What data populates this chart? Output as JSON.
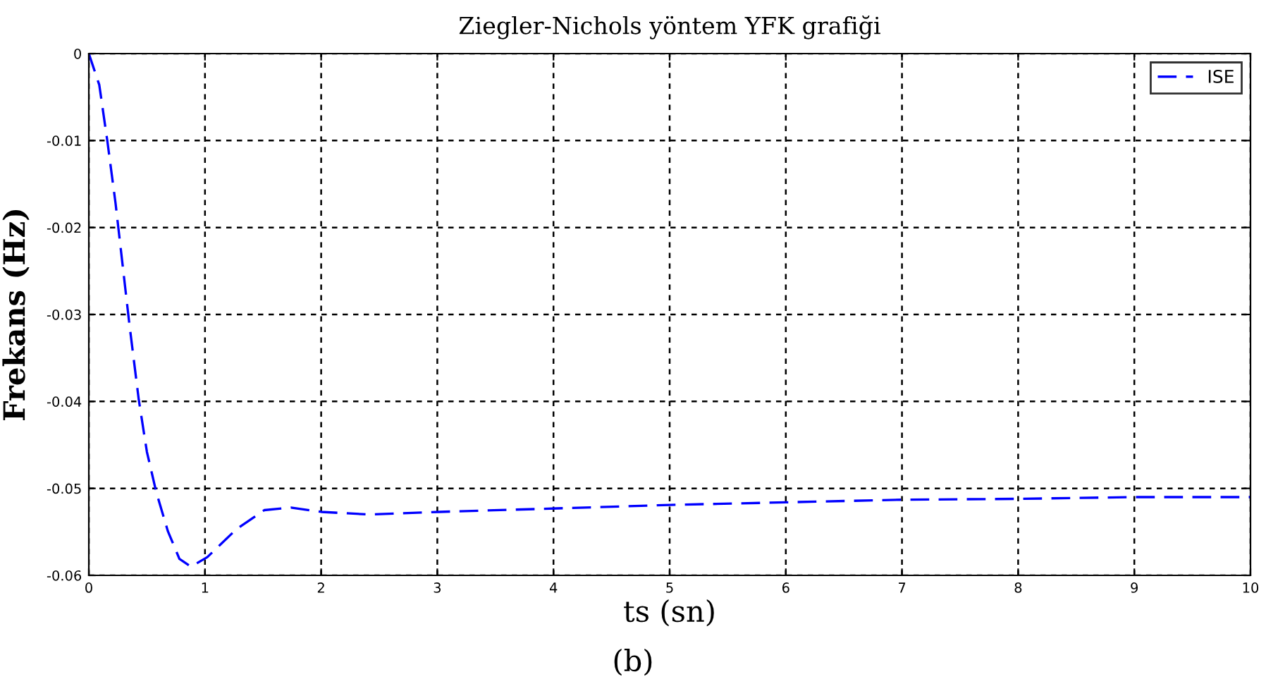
{
  "chart_data": {
    "type": "line",
    "title": "Ziegler-Nichols yöntem YFK grafiği",
    "xlabel": "ts (sn)",
    "ylabel": "Frekans (Hz)",
    "annotations": [
      "(b)"
    ],
    "series": [
      {
        "name": "ISE",
        "color": "#0000ff",
        "x": [
          0,
          0.09,
          0.16,
          0.23,
          0.29,
          0.35,
          0.43,
          0.5,
          0.58,
          0.68,
          0.78,
          0.88,
          1.02,
          1.27,
          1.51,
          1.74,
          2.0,
          2.41,
          3.02,
          4.03,
          5,
          6,
          7,
          8,
          9,
          10
        ],
        "values": [
          0,
          -0.0036,
          -0.0101,
          -0.0172,
          -0.0242,
          -0.0312,
          -0.0398,
          -0.0458,
          -0.0504,
          -0.0549,
          -0.0581,
          -0.059,
          -0.0579,
          -0.0547,
          -0.0525,
          -0.0522,
          -0.0527,
          -0.053,
          -0.0527,
          -0.0523,
          -0.0519,
          -0.0516,
          -0.0513,
          -0.0512,
          -0.051,
          -0.051
        ]
      }
    ],
    "xlim": [
      0,
      10
    ],
    "xticks": [
      0,
      1,
      2,
      3,
      4,
      5,
      6,
      7,
      8,
      9,
      10
    ],
    "ylim": [
      -0.06,
      0
    ],
    "yticks": [
      -0.06,
      -0.05,
      -0.04,
      -0.03,
      -0.02,
      -0.01,
      0
    ],
    "grid": true,
    "legend": "top right",
    "line_style": "dashed",
    "marker": "none"
  }
}
